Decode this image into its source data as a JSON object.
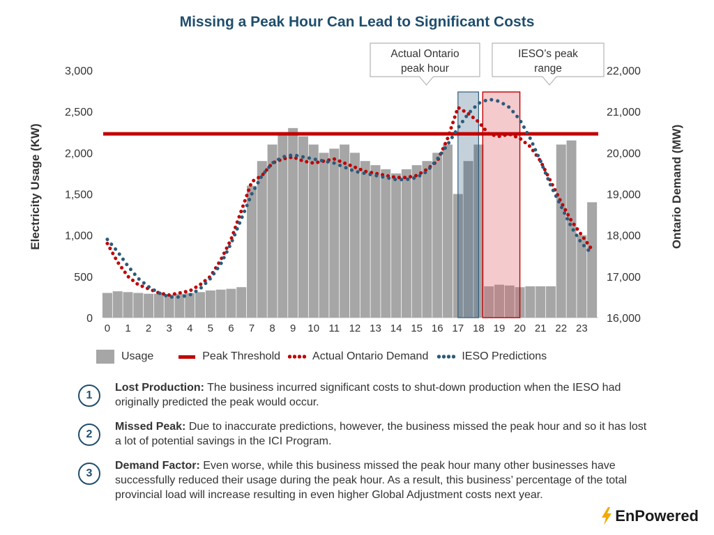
{
  "title": "Missing a Peak Hour Can Lead to Significant Costs",
  "callouts": {
    "actual": [
      "Actual Ontario",
      "peak hour"
    ],
    "ieso": [
      "IESO’s peak",
      "range"
    ]
  },
  "legend": {
    "usage": "Usage",
    "threshold": "Peak Threshold",
    "actual": "Actual Ontario Demand",
    "ieso": "IESO Predictions"
  },
  "notes": [
    {
      "num": "1",
      "heading": "Lost Production:",
      "body": " The business incurred significant costs to shut-down production when the IESO had originally predicted the peak would occur."
    },
    {
      "num": "2",
      "heading": "Missed Peak:",
      "body": " Due to inaccurate predictions, however, the business missed the peak hour and so it has lost a lot of potential savings in the ICI Program."
    },
    {
      "num": "3",
      "heading": "Demand Factor:",
      "body": " Even worse, while this business missed the peak hour many other businesses have successfully reduced their usage during the peak hour. As a result, this business’ percentage of the total provincial load will increase resulting in even higher Global Adjustment costs next year."
    }
  ],
  "logo": {
    "text": "EnPowered",
    "icon": "lightning-bolt-icon",
    "icon_color": "#f2a900"
  },
  "colors": {
    "usage": "#a6a6a6",
    "threshold": "#c00000",
    "actual": "#c00000",
    "ieso": "#2c5a7a",
    "title": "#1f4e6e"
  },
  "chart_data": {
    "type": "bar",
    "xlabel": "",
    "ylabel": "Electricity Usage (KW)",
    "y2label": "Ontario Demand (MW)",
    "ylim": [
      0,
      3000
    ],
    "y2lim": [
      16000,
      22000
    ],
    "xlim": [
      -0.2,
      23.8
    ],
    "x_ticks": [
      "0",
      "1",
      "2",
      "3",
      "4",
      "5",
      "6",
      "7",
      "8",
      "9",
      "10",
      "11",
      "12",
      "13",
      "14",
      "15",
      "16",
      "17",
      "18",
      "19",
      "20",
      "21",
      "22",
      "23"
    ],
    "y_ticks": [
      "0",
      "500",
      "1,000",
      "1,500",
      "2,000",
      "2,500",
      "3,000"
    ],
    "y2_ticks": [
      "16,000",
      "17,000",
      "18,000",
      "19,000",
      "20,000",
      "21,000",
      "22,000"
    ],
    "peak_threshold": 2230,
    "shaded_ranges": [
      {
        "name": "Actual Ontario peak hour",
        "from": 17,
        "to": 18
      },
      {
        "name": "IESO's peak range",
        "from": 18.2,
        "to": 20
      }
    ],
    "usage_hours": [
      0,
      0.5,
      1,
      1.5,
      2,
      2.5,
      3,
      3.5,
      4,
      4.5,
      5,
      5.5,
      6,
      6.5,
      7,
      7.5,
      8,
      8.5,
      9,
      9.5,
      10,
      10.5,
      11,
      11.5,
      12,
      12.5,
      13,
      13.5,
      14,
      14.5,
      15,
      15.5,
      16,
      16.5,
      17,
      17.5,
      18,
      18.5,
      19,
      19.5,
      20,
      20.5,
      21,
      21.5,
      22,
      22.5,
      23,
      23.5
    ],
    "usage_values": [
      300,
      320,
      310,
      300,
      290,
      290,
      280,
      290,
      300,
      310,
      330,
      340,
      350,
      370,
      1600,
      1900,
      2100,
      2250,
      2300,
      2200,
      2100,
      2000,
      2050,
      2100,
      2000,
      1900,
      1850,
      1800,
      1750,
      1800,
      1850,
      1900,
      2000,
      2100,
      1500,
      1900,
      2100,
      380,
      400,
      390,
      370,
      380,
      380,
      380,
      2100,
      2150,
      1000,
      1400
    ],
    "series": [
      {
        "name": "Actual Ontario Demand",
        "x": [
          0,
          0.5,
          1,
          1.5,
          2,
          2.5,
          3,
          3.5,
          4,
          4.5,
          5,
          5.5,
          6,
          6.5,
          7,
          7.5,
          8,
          8.5,
          9,
          9.5,
          10,
          10.5,
          11,
          11.5,
          12,
          12.5,
          13,
          13.5,
          14,
          14.5,
          15,
          15.5,
          16,
          16.5,
          17,
          17.5,
          18,
          18.5,
          19,
          19.5,
          20,
          20.5,
          21,
          21.5,
          22,
          22.5,
          23,
          23.5
        ],
        "y": [
          17800,
          17350,
          17000,
          16800,
          16700,
          16600,
          16550,
          16600,
          16650,
          16800,
          17000,
          17400,
          17900,
          18600,
          19300,
          19450,
          19750,
          19850,
          19900,
          19800,
          19750,
          19800,
          19850,
          19750,
          19650,
          19550,
          19500,
          19450,
          19400,
          19400,
          19450,
          19600,
          19800,
          20350,
          21100,
          20950,
          20750,
          20450,
          20400,
          20450,
          20350,
          20150,
          19800,
          19300,
          18800,
          18350,
          18000,
          17650
        ]
      },
      {
        "name": "IESO Predictions",
        "x": [
          0,
          0.5,
          1,
          1.5,
          2,
          2.5,
          3,
          3.5,
          4,
          4.5,
          5,
          5.5,
          6,
          6.5,
          7,
          7.5,
          8,
          8.5,
          9,
          9.5,
          10,
          10.5,
          11,
          11.5,
          12,
          12.5,
          13,
          13.5,
          14,
          14.5,
          15,
          15.5,
          16,
          16.5,
          17,
          17.5,
          18,
          18.5,
          19,
          19.5,
          20,
          20.5,
          21,
          21.5,
          22,
          22.5,
          23,
          23.5
        ],
        "y": [
          17900,
          17600,
          17250,
          16950,
          16750,
          16600,
          16500,
          16500,
          16550,
          16700,
          16950,
          17300,
          17800,
          18400,
          19000,
          19450,
          19750,
          19900,
          19950,
          19900,
          19850,
          19800,
          19750,
          19650,
          19550,
          19500,
          19450,
          19400,
          19350,
          19350,
          19400,
          19550,
          19850,
          20200,
          20600,
          20950,
          21200,
          21300,
          21250,
          21100,
          20800,
          20350,
          19800,
          19200,
          18700,
          18200,
          17800,
          17550
        ]
      }
    ]
  }
}
